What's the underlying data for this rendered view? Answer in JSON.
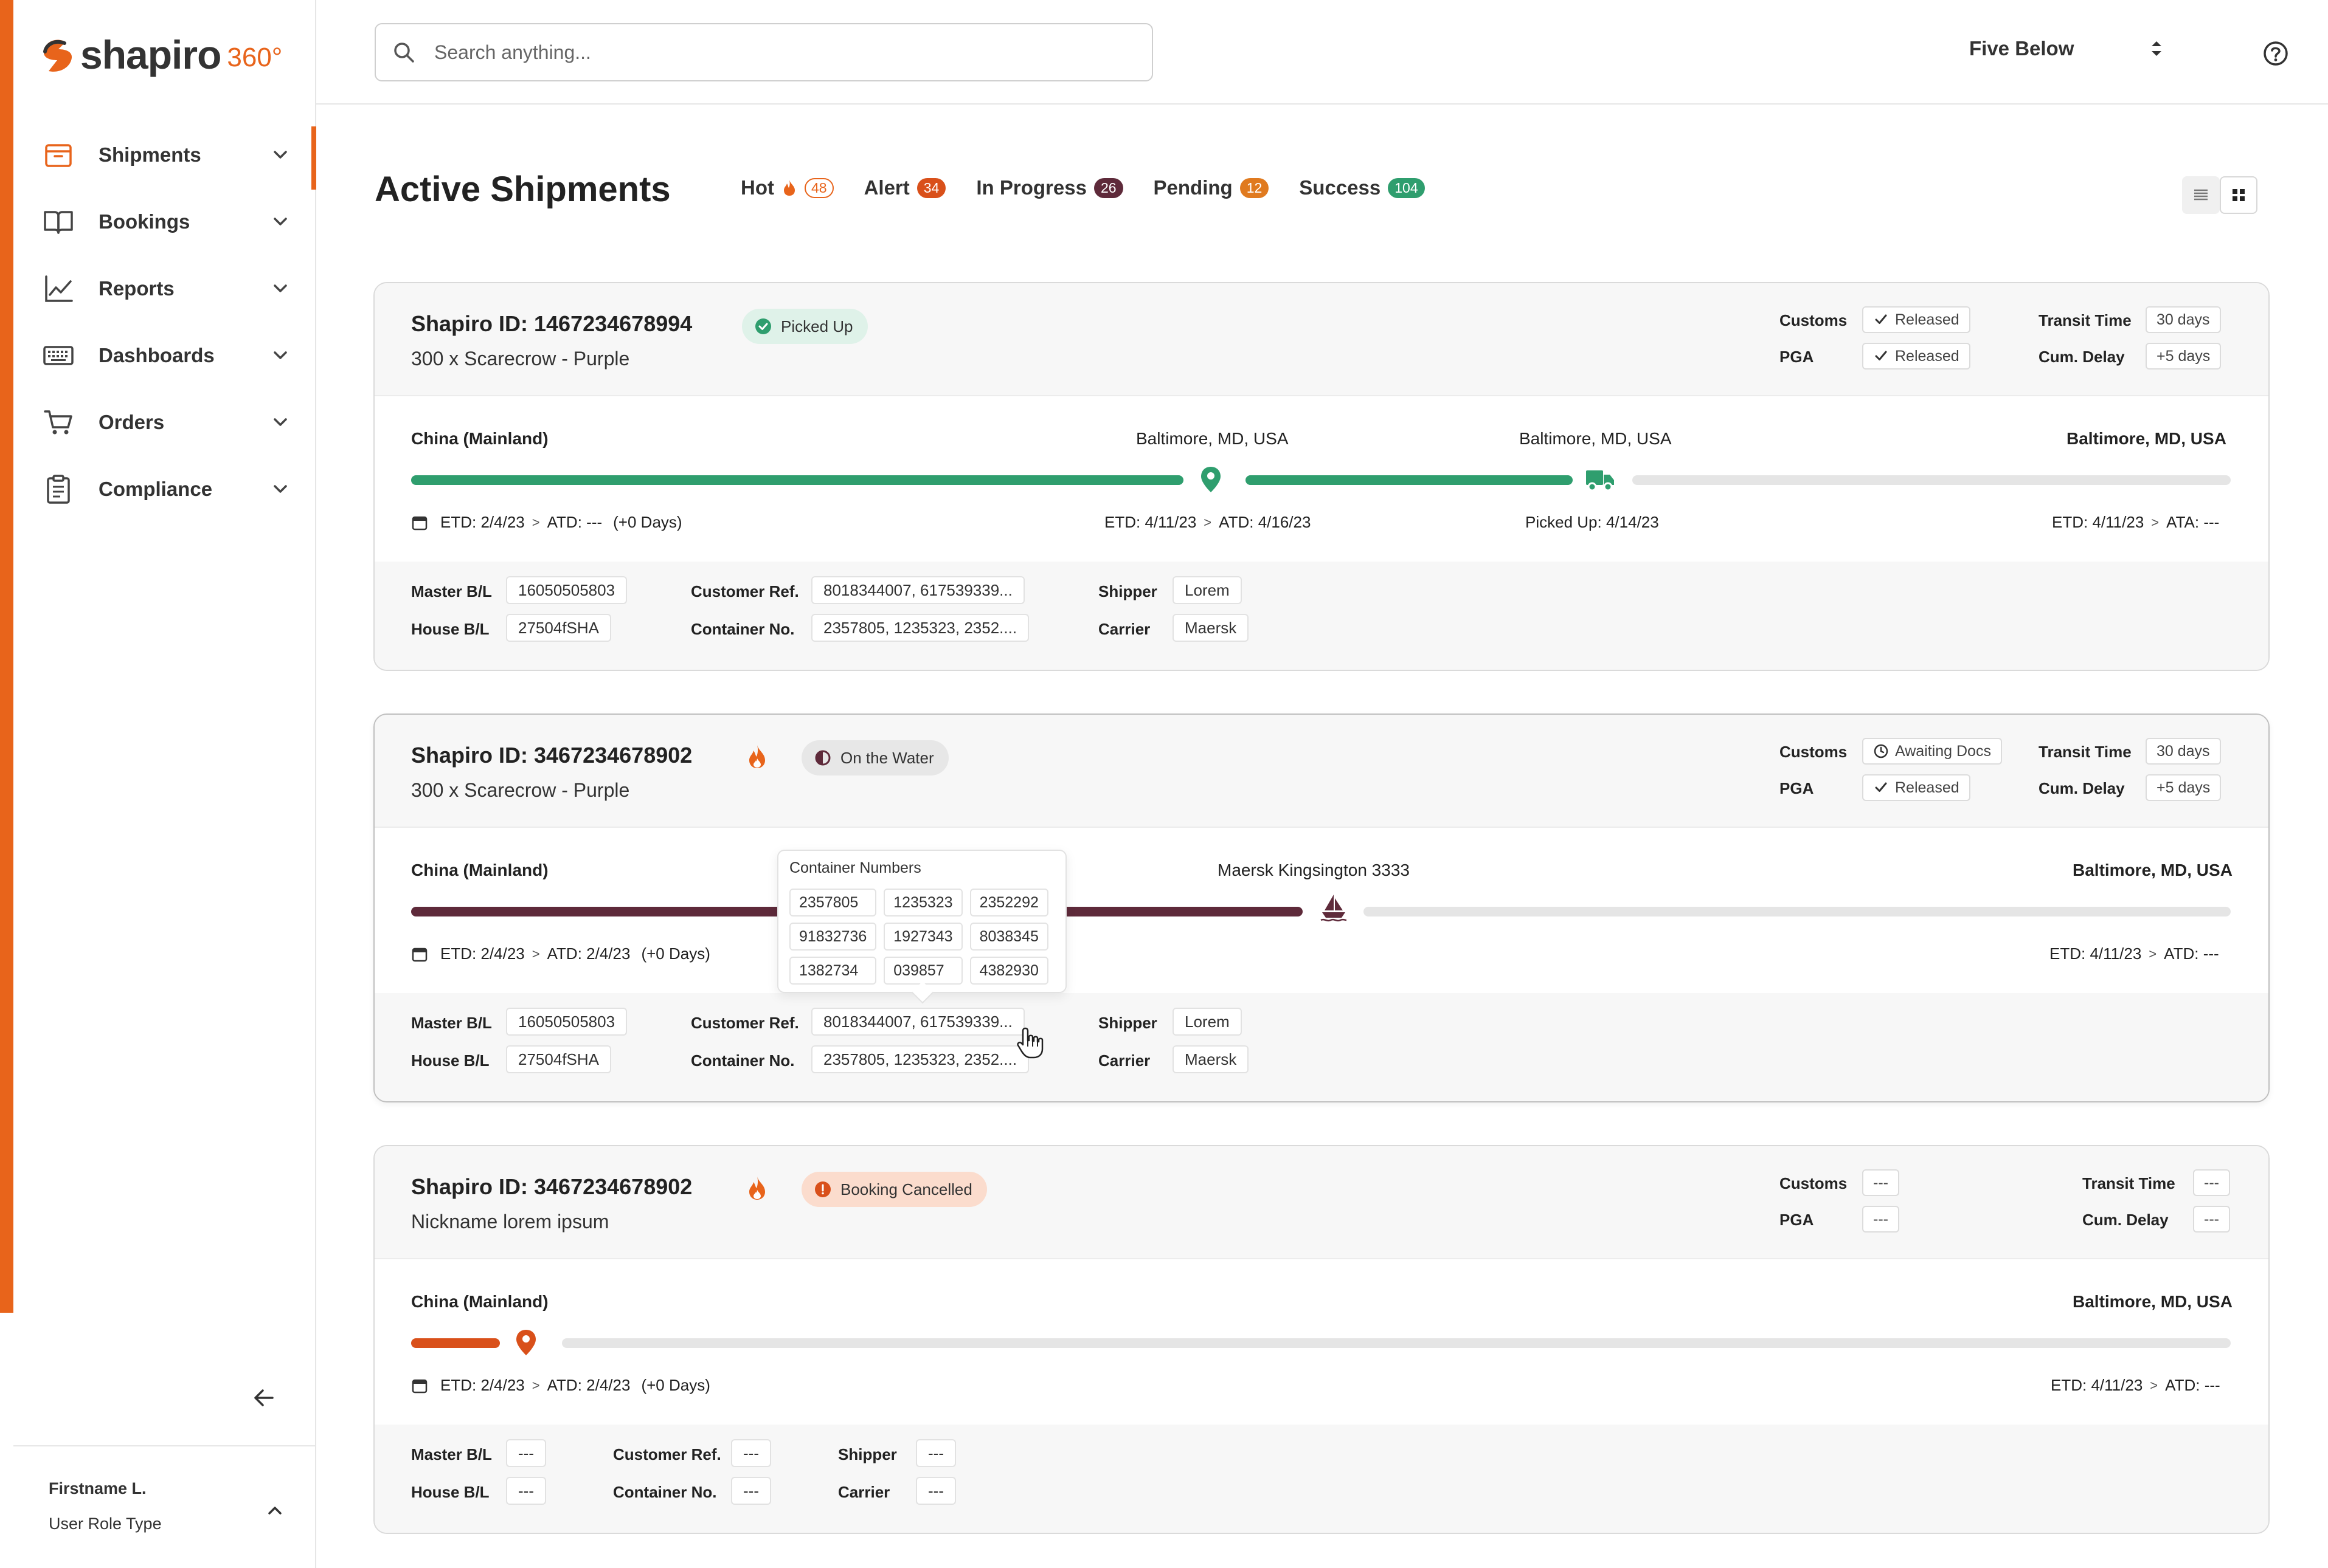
{
  "brand": {
    "name": "shapiro",
    "suffix": "360°",
    "accent": "#e8641b"
  },
  "sidebar": {
    "items": [
      {
        "label": "Shipments",
        "icon": "box-icon",
        "active": true
      },
      {
        "label": "Bookings",
        "icon": "book-icon",
        "active": false
      },
      {
        "label": "Reports",
        "icon": "chart-line-icon",
        "active": false
      },
      {
        "label": "Dashboards",
        "icon": "keyboard-icon",
        "active": false
      },
      {
        "label": "Orders",
        "icon": "cart-icon",
        "active": false
      },
      {
        "label": "Compliance",
        "icon": "clipboard-icon",
        "active": false
      }
    ],
    "user": {
      "name": "Firstname L.",
      "role": "User Role Type"
    }
  },
  "topbar": {
    "search_placeholder": "Search anything...",
    "account": "Five Below"
  },
  "page": {
    "title": "Active Shipments",
    "tabs": [
      {
        "label": "Hot",
        "count": "48",
        "color": "#e8641b",
        "style": "outline"
      },
      {
        "label": "Alert",
        "count": "34",
        "color": "#d9501a"
      },
      {
        "label": "In Progress",
        "count": "26",
        "color": "#5e2a3a"
      },
      {
        "label": "Pending",
        "count": "12",
        "color": "#e07a1f"
      },
      {
        "label": "Success",
        "count": "104",
        "color": "#2f9e6e"
      }
    ]
  },
  "labels": {
    "customs": "Customs",
    "pga": "PGA",
    "transit_time": "Transit Time",
    "cum_delay": "Cum. Delay",
    "master_bl": "Master B/L",
    "house_bl": "House B/L",
    "customer_ref": "Customer Ref.",
    "container_no": "Container No.",
    "shipper": "Shipper",
    "carrier": "Carrier"
  },
  "shipments": [
    {
      "id": "Shapiro ID: 1467234678994",
      "subtitle": "300 x Scarecrow - Purple",
      "status": "Picked Up",
      "customs": "Released",
      "pga": "Released",
      "transit_time": "30 days",
      "cum_delay": "+5 days",
      "locations": [
        "China (Mainland)",
        "Baltimore, MD, USA",
        "Baltimore, MD, USA",
        "Baltimore, MD, USA"
      ],
      "dates": {
        "origin_etd": "ETD:",
        "origin_etd_v": "2/4/23",
        "origin_atd": "ATD:",
        "origin_atd_v": "---",
        "origin_delta": "(+0 Days)",
        "mid_etd": "ETD:",
        "mid_etd_v": "4/11/23",
        "mid_atd": "ATD:",
        "mid_atd_v": "4/16/23",
        "picked": "Picked Up:",
        "picked_v": "4/14/23",
        "dest_etd": "ETD:",
        "dest_etd_v": "4/11/23",
        "dest_ata": "ATA:",
        "dest_ata_v": "---"
      },
      "master_bl": "16050505803",
      "house_bl": "27504fSHA",
      "customer_ref": "8018344007, 617539339...",
      "container_no": "2357805, 1235323, 2352....",
      "shipper": "Lorem",
      "carrier": "Maersk"
    },
    {
      "id": "Shapiro ID: 3467234678902",
      "subtitle": "300 x Scarecrow - Purple",
      "status": "On the Water",
      "customs": "Awaiting Docs",
      "pga": "Released",
      "transit_time": "30 days",
      "cum_delay": "+5 days",
      "locations": [
        "China (Mainland)",
        "Maersk Kingsington 3333",
        "Baltimore, MD, USA"
      ],
      "dates": {
        "origin_etd": "ETD:",
        "origin_etd_v": "2/4/23",
        "origin_atd": "ATD:",
        "origin_atd_v": "2/4/23",
        "origin_delta": "(+0 Days)",
        "dest_etd": "ETD:",
        "dest_etd_v": "4/11/23",
        "dest_atd": "ATD:",
        "dest_atd_v": "---"
      },
      "master_bl": "16050505803",
      "house_bl": "27504fSHA",
      "customer_ref": "8018344007, 617539339...",
      "container_no": "2357805, 1235323, 2352....",
      "shipper": "Lorem",
      "carrier": "Maersk",
      "tooltip": {
        "title": "Container Numbers",
        "items": [
          "2357805",
          "1235323",
          "2352292",
          "91832736",
          "1927343",
          "8038345",
          "1382734",
          "039857",
          "4382930"
        ]
      }
    },
    {
      "id": "Shapiro ID: 3467234678902",
      "subtitle": "Nickname lorem ipsum",
      "status": "Booking Cancelled",
      "customs": "---",
      "pga": "---",
      "transit_time": "---",
      "cum_delay": "---",
      "locations": [
        "China (Mainland)",
        "Baltimore, MD, USA"
      ],
      "dates": {
        "origin_etd": "ETD:",
        "origin_etd_v": "2/4/23",
        "origin_atd": "ATD:",
        "origin_atd_v": "2/4/23",
        "origin_delta": "(+0 Days)",
        "dest_etd": "ETD:",
        "dest_etd_v": "4/11/23",
        "dest_atd": "ATD:",
        "dest_atd_v": "---"
      },
      "master_bl": "---",
      "house_bl": "---",
      "customer_ref": "---",
      "container_no": "---",
      "shipper": "---",
      "carrier": "---"
    }
  ]
}
